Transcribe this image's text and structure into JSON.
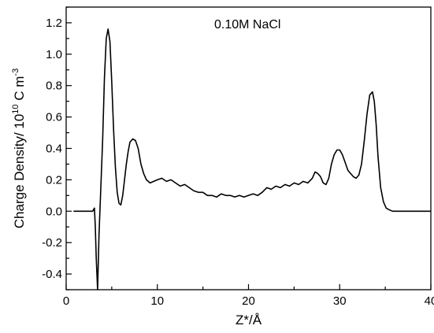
{
  "chart_data": {
    "type": "line",
    "annotation": "0.10M NaCl",
    "xlabel": "Z*/Å",
    "ylabel": {
      "prefix": "Charge Density/ 10",
      "exp1": "10",
      "mid": " C m",
      "exp2": "-3"
    },
    "xlim": [
      0,
      40
    ],
    "ylim": [
      -0.5,
      1.3
    ],
    "x_ticks": [
      0,
      10,
      20,
      30,
      40
    ],
    "y_ticks": [
      -0.4,
      -0.2,
      0.0,
      0.2,
      0.4,
      0.6,
      0.8,
      1.0,
      1.2
    ],
    "y_tick_labels": [
      "-0.4",
      "-0.2",
      "0.0",
      "0.2",
      "0.4",
      "0.6",
      "0.8",
      "1.0",
      "1.2"
    ],
    "grid": false,
    "series": [
      {
        "color": "#000000",
        "x": [
          0.8,
          2.9,
          3.1,
          3.2,
          3.3,
          3.45,
          3.6,
          3.8,
          4.0,
          4.2,
          4.4,
          4.6,
          4.8,
          5.0,
          5.2,
          5.4,
          5.6,
          5.8,
          6.0,
          6.2,
          6.4,
          6.6,
          6.8,
          7.0,
          7.3,
          7.6,
          7.9,
          8.2,
          8.5,
          8.8,
          9.2,
          9.6,
          10.0,
          10.5,
          11.0,
          11.5,
          12.0,
          12.5,
          13.0,
          13.5,
          14.0,
          14.5,
          15.0,
          15.5,
          16.0,
          16.5,
          17.0,
          17.5,
          18.0,
          18.5,
          19.0,
          19.5,
          20.0,
          20.5,
          21.0,
          21.5,
          22.0,
          22.5,
          23.0,
          23.5,
          24.0,
          24.5,
          25.0,
          25.5,
          26.0,
          26.5,
          27.0,
          27.3,
          27.6,
          27.9,
          28.2,
          28.5,
          28.8,
          29.1,
          29.4,
          29.7,
          30.0,
          30.3,
          30.6,
          30.9,
          31.2,
          31.5,
          31.8,
          32.1,
          32.4,
          32.7,
          33.0,
          33.3,
          33.6,
          33.8,
          34.0,
          34.2,
          34.5,
          34.8,
          35.1,
          35.4,
          35.8,
          36.5,
          38.0,
          40.0
        ],
        "y": [
          0.0,
          0.0,
          0.02,
          -0.1,
          -0.3,
          -0.5,
          -0.15,
          0.15,
          0.45,
          0.85,
          1.1,
          1.16,
          1.08,
          0.82,
          0.52,
          0.28,
          0.12,
          0.05,
          0.04,
          0.1,
          0.2,
          0.3,
          0.38,
          0.44,
          0.46,
          0.45,
          0.4,
          0.3,
          0.24,
          0.2,
          0.18,
          0.19,
          0.2,
          0.21,
          0.19,
          0.2,
          0.18,
          0.16,
          0.17,
          0.15,
          0.13,
          0.12,
          0.12,
          0.1,
          0.1,
          0.09,
          0.11,
          0.1,
          0.1,
          0.09,
          0.1,
          0.09,
          0.1,
          0.11,
          0.1,
          0.12,
          0.15,
          0.14,
          0.16,
          0.15,
          0.17,
          0.16,
          0.18,
          0.17,
          0.19,
          0.18,
          0.21,
          0.25,
          0.24,
          0.22,
          0.18,
          0.17,
          0.21,
          0.3,
          0.36,
          0.39,
          0.39,
          0.36,
          0.31,
          0.26,
          0.24,
          0.22,
          0.21,
          0.23,
          0.3,
          0.45,
          0.62,
          0.74,
          0.76,
          0.7,
          0.55,
          0.35,
          0.15,
          0.06,
          0.02,
          0.01,
          0.0,
          0.0,
          0.0,
          0.0
        ]
      }
    ]
  }
}
